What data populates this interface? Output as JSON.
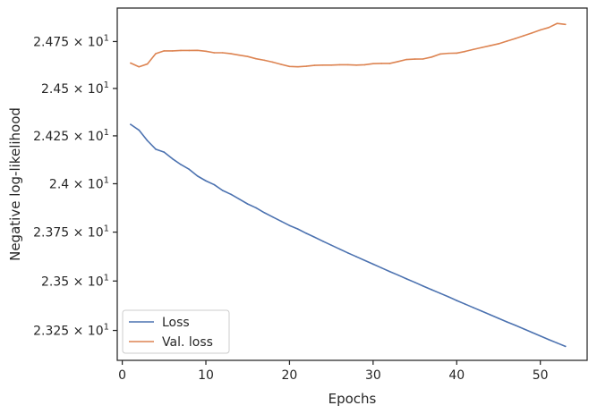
{
  "chart_data": {
    "type": "line",
    "xlabel": "Epochs",
    "ylabel": "Negative log-likelihood",
    "xlim": [
      -0.6,
      55.6
    ],
    "ylim": [
      23.1,
      24.93
    ],
    "y_scale": "log",
    "grid": false,
    "legend_position": "lower-left",
    "x_ticks": [
      {
        "value": 0,
        "label": "0"
      },
      {
        "value": 10,
        "label": "10"
      },
      {
        "value": 20,
        "label": "20"
      },
      {
        "value": 30,
        "label": "30"
      },
      {
        "value": 40,
        "label": "40"
      },
      {
        "value": 50,
        "label": "50"
      }
    ],
    "y_ticks": [
      {
        "value": 23.25,
        "mantissa": "2.325",
        "exponent": "1"
      },
      {
        "value": 23.5,
        "mantissa": "2.35",
        "exponent": "1"
      },
      {
        "value": 23.75,
        "mantissa": "2.375",
        "exponent": "1"
      },
      {
        "value": 24.0,
        "mantissa": "2.4",
        "exponent": "1"
      },
      {
        "value": 24.25,
        "mantissa": "2.425",
        "exponent": "1"
      },
      {
        "value": 24.5,
        "mantissa": "2.45",
        "exponent": "1"
      },
      {
        "value": 24.75,
        "mantissa": "2.475",
        "exponent": "1"
      }
    ],
    "x": [
      1,
      2,
      3,
      4,
      5,
      6,
      7,
      8,
      9,
      10,
      11,
      12,
      13,
      14,
      15,
      16,
      17,
      18,
      19,
      20,
      21,
      22,
      23,
      24,
      25,
      26,
      27,
      28,
      29,
      30,
      31,
      32,
      33,
      34,
      35,
      36,
      37,
      38,
      39,
      40,
      41,
      42,
      43,
      44,
      45,
      46,
      47,
      48,
      49,
      50,
      51,
      52,
      53
    ],
    "series": [
      {
        "name": "Loss",
        "color": "#4c72b0",
        "values": [
          24.31,
          24.28,
          24.225,
          24.18,
          24.165,
          24.13,
          24.1,
          24.075,
          24.04,
          24.015,
          23.995,
          23.965,
          23.945,
          23.92,
          23.895,
          23.875,
          23.85,
          23.828,
          23.806,
          23.784,
          23.766,
          23.744,
          23.724,
          23.703,
          23.683,
          23.663,
          23.643,
          23.624,
          23.605,
          23.586,
          23.567,
          23.548,
          23.53,
          23.511,
          23.493,
          23.474,
          23.456,
          23.438,
          23.42,
          23.401,
          23.383,
          23.365,
          23.347,
          23.329,
          23.311,
          23.293,
          23.276,
          23.258,
          23.24,
          23.222,
          23.204,
          23.187,
          23.17
        ]
      },
      {
        "name": "Val. loss",
        "color": "#dd8452",
        "values": [
          24.635,
          24.615,
          24.63,
          24.685,
          24.7,
          24.7,
          24.702,
          24.702,
          24.703,
          24.698,
          24.69,
          24.69,
          24.685,
          24.677,
          24.67,
          24.658,
          24.65,
          24.64,
          24.628,
          24.617,
          24.615,
          24.618,
          24.623,
          24.624,
          24.624,
          24.626,
          24.626,
          24.624,
          24.626,
          24.632,
          24.633,
          24.633,
          24.643,
          24.654,
          24.656,
          24.657,
          24.667,
          24.683,
          24.687,
          24.688,
          24.697,
          24.708,
          24.718,
          24.728,
          24.738,
          24.752,
          24.766,
          24.781,
          24.796,
          24.812,
          24.825,
          24.847,
          24.842
        ]
      }
    ]
  }
}
